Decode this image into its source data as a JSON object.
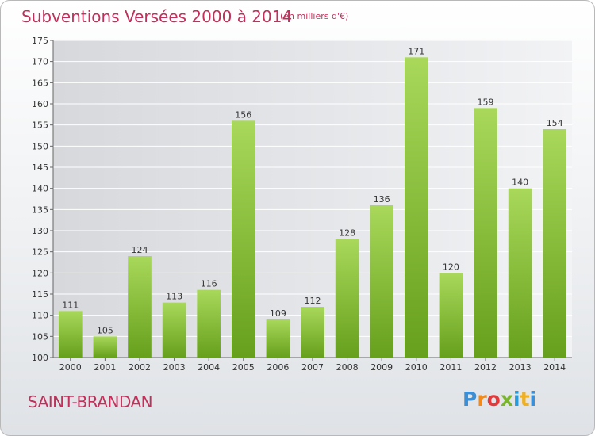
{
  "header": {
    "title": "Subventions Versées 2000 à 2014",
    "subtitle": "(en milliers d'€)"
  },
  "footer": {
    "place": "SAINT-BRANDAN",
    "logo": [
      "P",
      "r",
      "o",
      "x",
      "i",
      "t",
      "i"
    ]
  },
  "colors": {
    "bar_light": "#a9d85a",
    "bar_dark": "#66a01c",
    "title": "#c0305a",
    "grid": "#ffffff"
  },
  "chart_data": {
    "type": "bar",
    "title": "Subventions Versées 2000 à 2014",
    "subtitle": "(en milliers d'€)",
    "xlabel": "",
    "ylabel": "",
    "categories": [
      "2000",
      "2001",
      "2002",
      "2003",
      "2004",
      "2005",
      "2006",
      "2007",
      "2008",
      "2009",
      "2010",
      "2011",
      "2012",
      "2013",
      "2014"
    ],
    "values": [
      111,
      105,
      124,
      113,
      116,
      156,
      109,
      112,
      128,
      136,
      171,
      120,
      159,
      140,
      154
    ],
    "ylim": [
      100,
      175
    ],
    "yticks": [
      100,
      105,
      110,
      115,
      120,
      125,
      130,
      135,
      140,
      145,
      150,
      155,
      160,
      165,
      170,
      175
    ],
    "grid": true,
    "data_labels": true
  }
}
